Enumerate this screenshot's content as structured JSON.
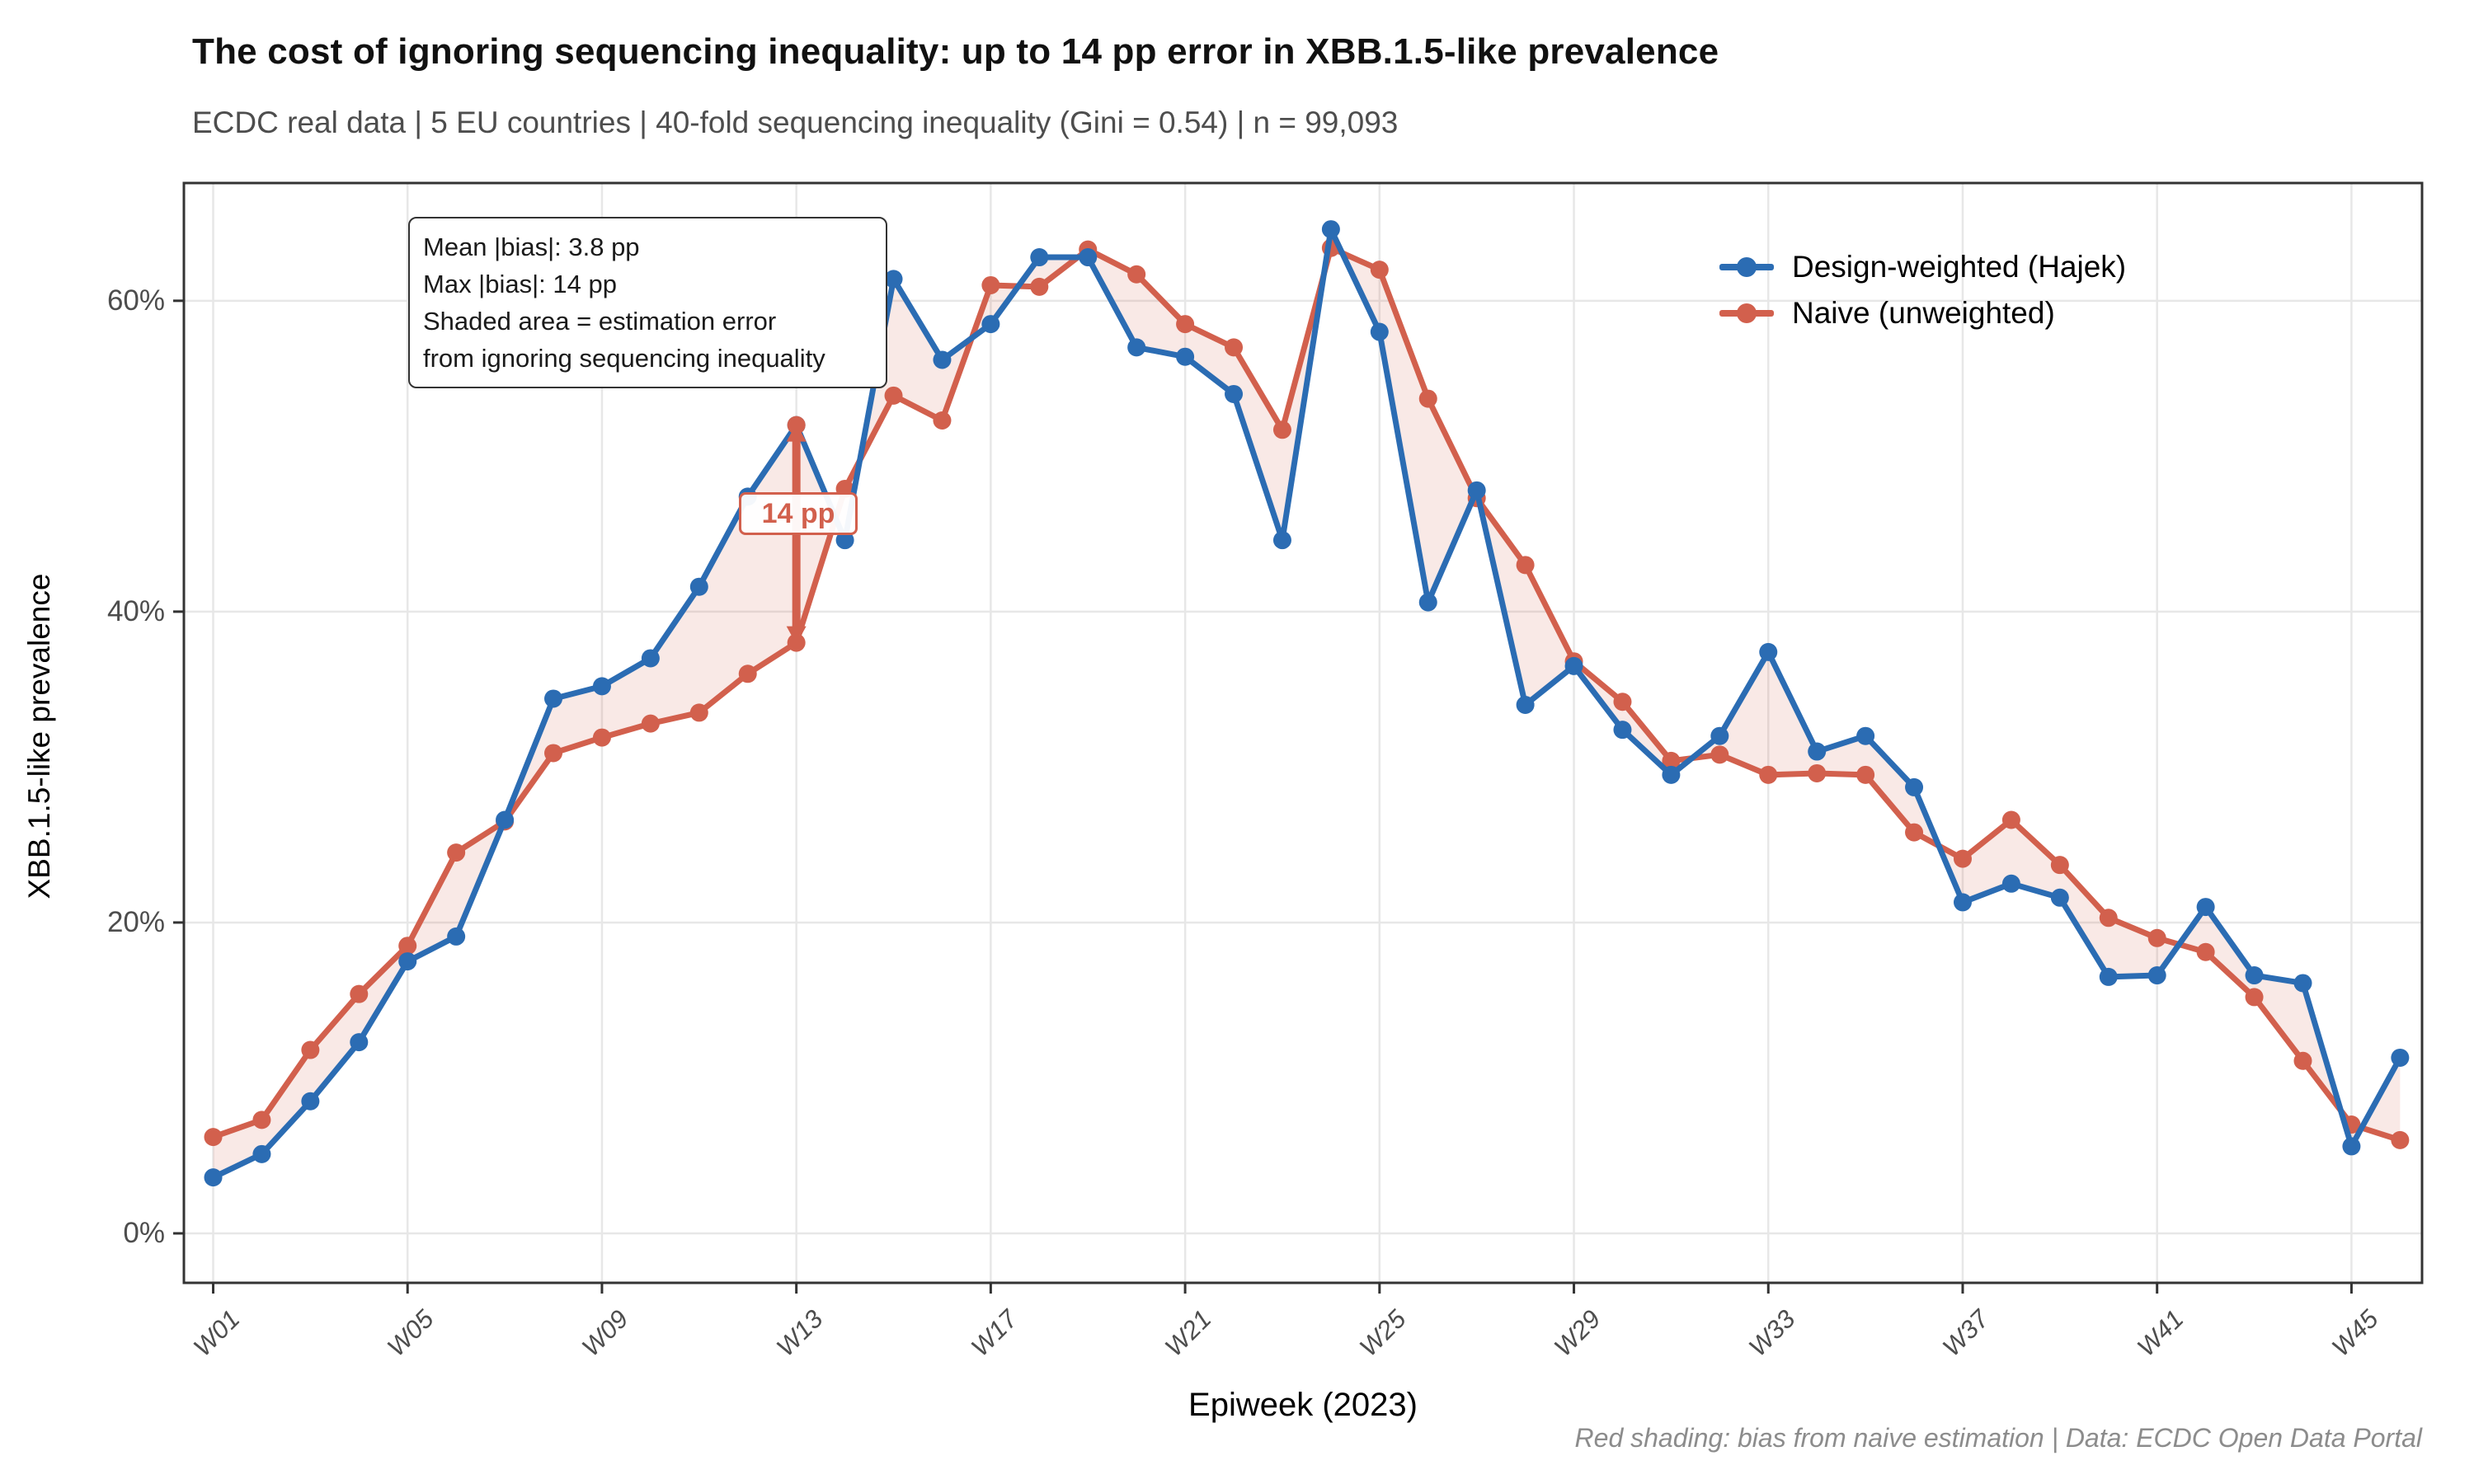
{
  "header": {
    "title": "The cost of ignoring sequencing inequality: up to 14 pp error in XBB.1.5-like prevalence",
    "subtitle": "ECDC real data | 5 EU countries | 40-fold sequencing inequality (Gini = 0.54) | n = 99,093"
  },
  "annotation_box": {
    "lines": [
      "Mean |bias|: 3.8 pp",
      "Max |bias|: 14 pp",
      "Shaded area = estimation error",
      "from ignoring sequencing inequality"
    ]
  },
  "caption": {
    "text": "Red shading: bias from naive estimation | Data: ECDC Open Data Portal"
  },
  "chart_data": {
    "type": "line",
    "title": "The cost of ignoring sequencing inequality: up to 14 pp error in XBB.1.5-like prevalence",
    "xlabel": "Epiweek (2023)",
    "ylabel": "XBB.1.5-like prevalence",
    "x_weeks": [
      1,
      2,
      3,
      4,
      5,
      6,
      7,
      8,
      9,
      10,
      11,
      12,
      13,
      14,
      15,
      16,
      17,
      18,
      19,
      20,
      21,
      22,
      23,
      24,
      25,
      26,
      27,
      28,
      29,
      30,
      31,
      32,
      33,
      34,
      35,
      36,
      37,
      38,
      39,
      40,
      41,
      42,
      43,
      44,
      45,
      46
    ],
    "series": [
      {
        "name": "Design-weighted (Hajek)",
        "color": "#2b6cb3",
        "values": [
          3.6,
          5.1,
          8.5,
          12.3,
          17.5,
          19.1,
          26.6,
          34.4,
          35.2,
          37.0,
          41.6,
          47.4,
          52.0,
          44.6,
          61.4,
          56.2,
          58.5,
          62.8,
          62.8,
          57.0,
          56.4,
          54.0,
          44.6,
          64.6,
          58.0,
          40.6,
          47.8,
          34.0,
          36.5,
          32.4,
          29.5,
          32.0,
          37.4,
          31.0,
          32.0,
          28.7,
          21.3,
          22.5,
          21.6,
          16.5,
          16.6,
          21.0,
          16.6,
          16.1,
          5.6,
          11.3
        ]
      },
      {
        "name": "Naive (unweighted)",
        "color": "#d2604d",
        "values": [
          6.2,
          7.3,
          11.8,
          15.4,
          18.5,
          24.5,
          26.5,
          30.9,
          31.9,
          32.8,
          33.5,
          36.0,
          38.0,
          47.9,
          53.9,
          52.3,
          61.0,
          60.9,
          63.3,
          61.7,
          58.5,
          57.0,
          51.7,
          63.4,
          62.0,
          53.7,
          47.3,
          43.0,
          36.8,
          34.2,
          30.4,
          30.8,
          29.5,
          29.6,
          29.5,
          25.8,
          24.1,
          26.6,
          23.7,
          20.3,
          19.0,
          18.1,
          15.2,
          11.1,
          7.0,
          6.0
        ]
      }
    ],
    "ribbon": {
      "color": "#d2604d",
      "opacity": 0.14,
      "meaning": "absolute bias between series"
    },
    "bias_marker": {
      "week": 13,
      "from": 38.0,
      "to": 52.0,
      "label": "14 pp"
    },
    "x_ticks": {
      "weeks": [
        1,
        5,
        9,
        13,
        17,
        21,
        25,
        29,
        33,
        37,
        41,
        45
      ],
      "labels": [
        "W01",
        "W05",
        "W09",
        "W13",
        "W17",
        "W21",
        "W25",
        "W29",
        "W33",
        "W37",
        "W41",
        "W45"
      ]
    },
    "y_ticks": {
      "values": [
        0,
        20,
        40,
        60
      ],
      "labels": [
        "0%",
        "20%",
        "40%",
        "60%"
      ]
    },
    "ylim": [
      -3.2,
      67.6
    ],
    "grid": "major only, light gray",
    "legend_position": "top-right inside panel",
    "panel_border": "#333333",
    "gridline_color": "#e7e7e7"
  },
  "legend": {
    "items": [
      {
        "label": "Design-weighted (Hajek)",
        "color": "#2b6cb3"
      },
      {
        "label": "Naive (unweighted)",
        "color": "#d2604d"
      }
    ]
  }
}
